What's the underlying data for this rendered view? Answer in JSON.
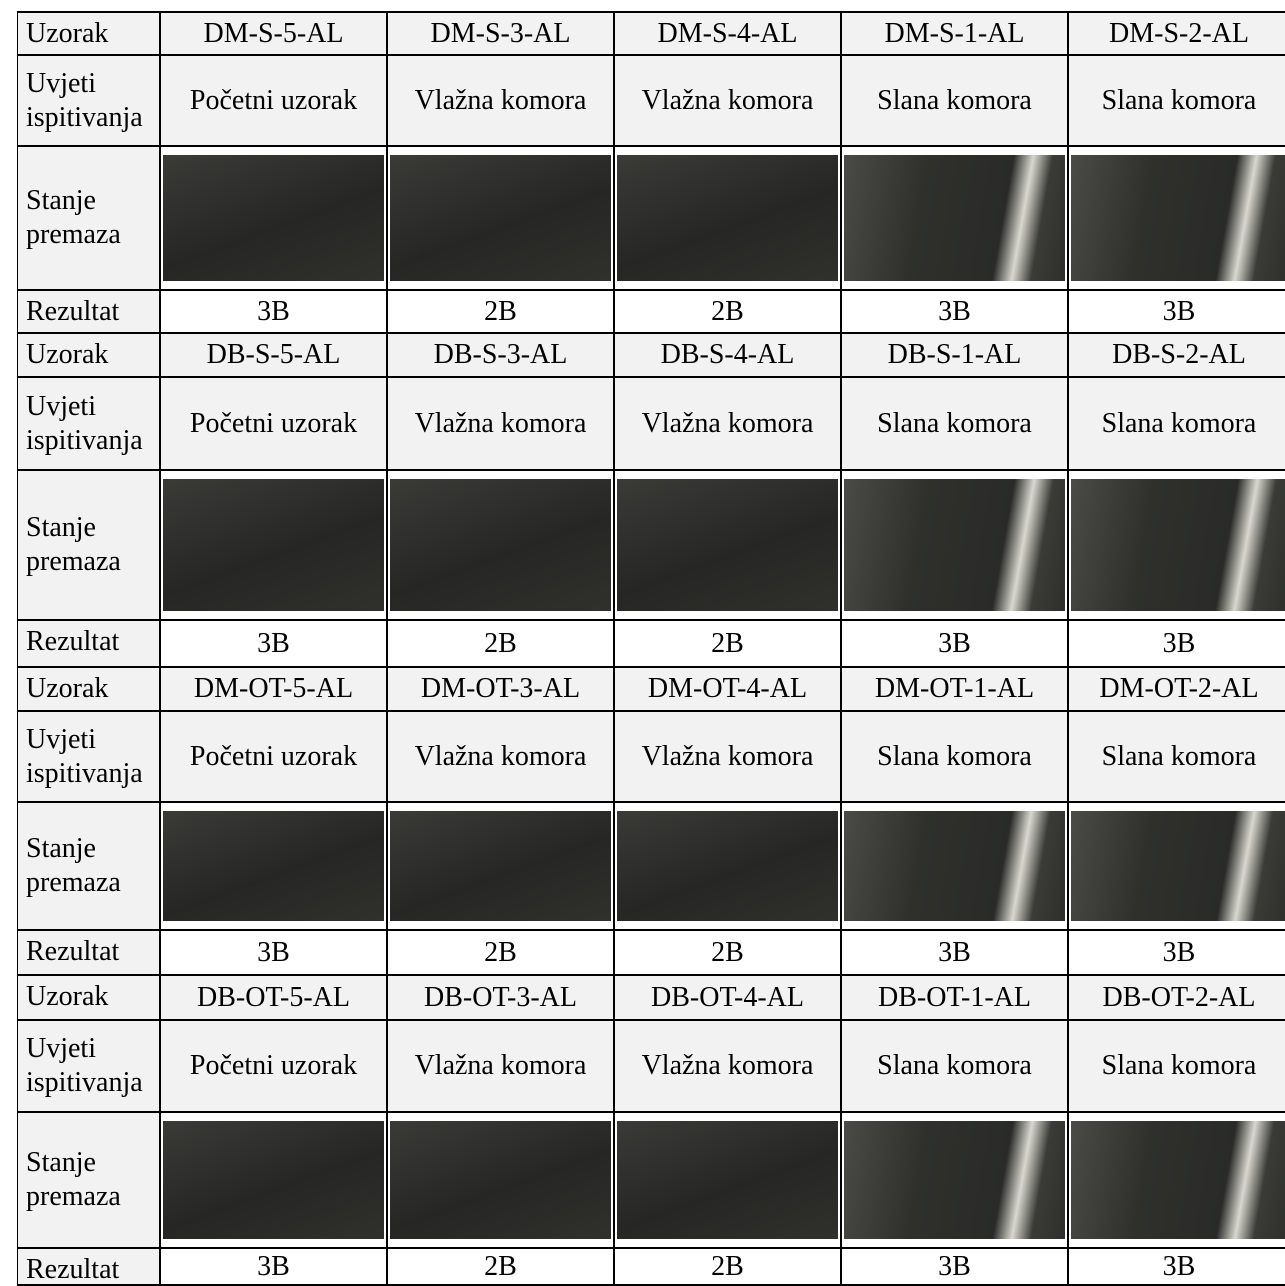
{
  "table": {
    "row_labels": {
      "sample": "Uzorak",
      "conditions": [
        "Uvjeti",
        "ispitivanja"
      ],
      "state": [
        "Stanje",
        "premaza"
      ],
      "result": "Rezultat"
    },
    "blocks": [
      {
        "samples": [
          "DM-S-5-AL",
          "DM-S-3-AL",
          "DM-S-4-AL",
          "DM-S-1-AL",
          "DM-S-2-AL"
        ],
        "conditions": [
          "Početni uzorak",
          "Vlažna komora",
          "Vlažna komora",
          "Slana komora",
          "Slana komora"
        ],
        "results": [
          "3B",
          "2B",
          "2B",
          "3B",
          "3B"
        ]
      },
      {
        "samples": [
          "DB-S-5-AL",
          "DB-S-3-AL",
          "DB-S-4-AL",
          "DB-S-1-AL",
          "DB-S-2-AL"
        ],
        "conditions": [
          "Početni uzorak",
          "Vlažna komora",
          "Vlažna komora",
          "Slana komora",
          "Slana komora"
        ],
        "results": [
          "3B",
          "2B",
          "2B",
          "3B",
          "3B"
        ]
      },
      {
        "samples": [
          "DM-OT-5-AL",
          "DM-OT-3-AL",
          "DM-OT-4-AL",
          "DM-OT-1-AL",
          "DM-OT-2-AL"
        ],
        "conditions": [
          "Početni uzorak",
          "Vlažna komora",
          "Vlažna komora",
          "Slana komora",
          "Slana komora"
        ],
        "results": [
          "3B",
          "2B",
          "2B",
          "3B",
          "3B"
        ]
      },
      {
        "samples": [
          "DB-OT-5-AL",
          "DB-OT-3-AL",
          "DB-OT-4-AL",
          "DB-OT-1-AL",
          "DB-OT-2-AL"
        ],
        "conditions": [
          "Početni uzorak",
          "Vlažna komora",
          "Vlažna komora",
          "Slana komora",
          "Slana komora"
        ],
        "results": [
          "3B",
          "2B",
          "2B",
          "3B",
          "3B"
        ]
      }
    ]
  }
}
